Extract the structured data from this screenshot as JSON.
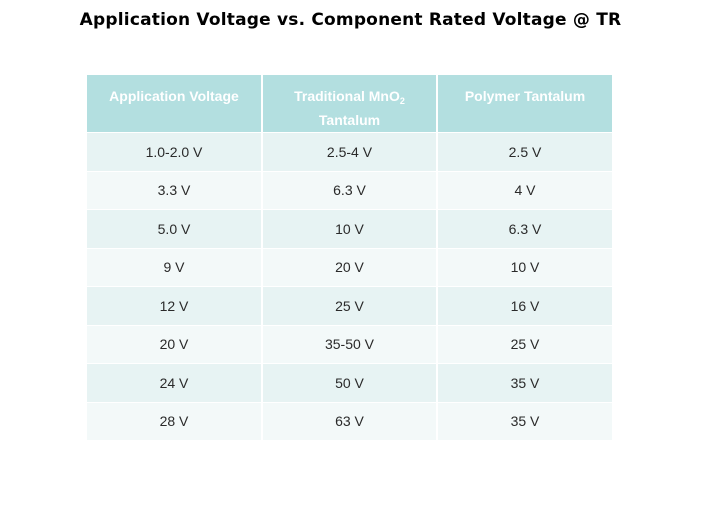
{
  "title": "Application Voltage vs. Component Rated Voltage @ TR",
  "table": {
    "headers": [
      {
        "text": "Application Voltage",
        "sub": "",
        "text2": ""
      },
      {
        "text": "Traditional MnO",
        "sub": "2",
        "text2": "Tantalum"
      },
      {
        "text": "Polymer Tantalum",
        "sub": "",
        "text2": ""
      }
    ],
    "rows": [
      [
        "1.0-2.0 V",
        "2.5-4 V",
        "2.5 V"
      ],
      [
        "3.3 V",
        "6.3 V",
        "4 V"
      ],
      [
        "5.0 V",
        "10 V",
        "6.3 V"
      ],
      [
        "9 V",
        "20 V",
        "10 V"
      ],
      [
        "12 V",
        "25 V",
        "16 V"
      ],
      [
        "20 V",
        "35-50 V",
        "25 V"
      ],
      [
        "24 V",
        "50 V",
        "35 V"
      ],
      [
        "28 V",
        "63 V",
        "35 V"
      ]
    ]
  },
  "colors": {
    "header_background": "#b3dfe0",
    "header_text": "#ffffff",
    "row_odd_background": "#e7f3f3",
    "row_even_background": "#f3f9f9",
    "cell_text": "#2a2a2a"
  }
}
